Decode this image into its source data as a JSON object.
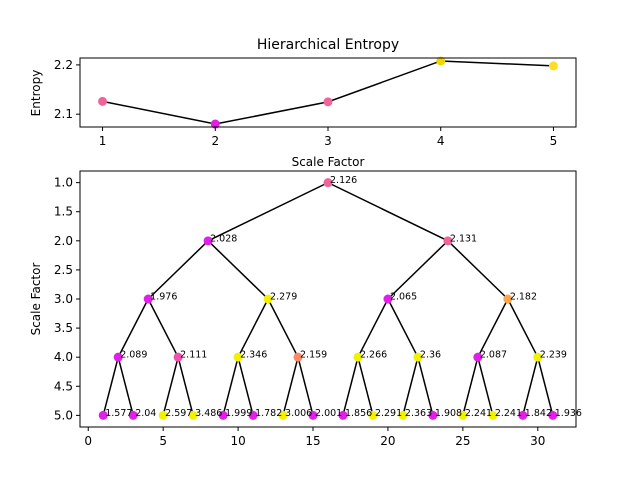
{
  "chart_data": [
    {
      "type": "line",
      "title": "Hierarchical Entropy",
      "xlabel": "Scale Factor",
      "ylabel": "Entropy",
      "x": [
        1,
        2,
        3,
        4,
        5
      ],
      "y": [
        2.126,
        2.08,
        2.125,
        2.208,
        2.198
      ],
      "point_colors": [
        "#f0649a",
        "#e020e8",
        "#f0649a",
        "#f2d400",
        "#ffdd22"
      ],
      "xlim": [
        0.8,
        5.2
      ],
      "ylim": [
        2.074,
        2.214
      ],
      "xticks": [
        1,
        2,
        3,
        4,
        5
      ],
      "yticks": [
        2.1,
        2.2
      ],
      "grid": false
    },
    {
      "type": "scatter",
      "subtype": "binary-tree",
      "xlabel": "",
      "ylabel": "Scale Factor",
      "xlim": [
        -0.55,
        32.55
      ],
      "ylim": [
        5.2,
        0.8
      ],
      "y_inverted": true,
      "xticks": [
        0,
        5,
        10,
        15,
        20,
        25,
        30
      ],
      "yticks": [
        1.0,
        1.5,
        2.0,
        2.5,
        3.0,
        3.5,
        4.0,
        4.5,
        5.0
      ],
      "grid": false,
      "nodes": [
        {
          "x": 16,
          "y": 1,
          "label": "2.126",
          "color": "#f0649a"
        },
        {
          "x": 8,
          "y": 2,
          "label": "2.028",
          "color": "#e020e8"
        },
        {
          "x": 24,
          "y": 2,
          "label": "2.131",
          "color": "#f0649a"
        },
        {
          "x": 4,
          "y": 3,
          "label": "1.976",
          "color": "#e020e8"
        },
        {
          "x": 12,
          "y": 3,
          "label": "2.279",
          "color": "#f2f200"
        },
        {
          "x": 20,
          "y": 3,
          "label": "2.065",
          "color": "#e020e8"
        },
        {
          "x": 28,
          "y": 3,
          "label": "2.182",
          "color": "#ffa64d"
        },
        {
          "x": 2,
          "y": 4,
          "label": "2.089",
          "color": "#e020e8"
        },
        {
          "x": 6,
          "y": 4,
          "label": "2.111",
          "color": "#f050b0"
        },
        {
          "x": 10,
          "y": 4,
          "label": "2.346",
          "color": "#f2f200"
        },
        {
          "x": 14,
          "y": 4,
          "label": "2.159",
          "color": "#ff8866"
        },
        {
          "x": 18,
          "y": 4,
          "label": "2.266",
          "color": "#f2f200"
        },
        {
          "x": 22,
          "y": 4,
          "label": "2.36",
          "color": "#f2f200"
        },
        {
          "x": 26,
          "y": 4,
          "label": "2.087",
          "color": "#e020e8"
        },
        {
          "x": 30,
          "y": 4,
          "label": "2.239",
          "color": "#f2f200"
        },
        {
          "x": 1,
          "y": 5,
          "label": "1.577",
          "color": "#e020e8"
        },
        {
          "x": 3,
          "y": 5,
          "label": "2.04",
          "color": "#e020e8"
        },
        {
          "x": 5,
          "y": 5,
          "label": "2.597",
          "color": "#f2f200"
        },
        {
          "x": 7,
          "y": 5,
          "label": "3.486",
          "color": "#f2f200"
        },
        {
          "x": 9,
          "y": 5,
          "label": "1.999",
          "color": "#e020e8"
        },
        {
          "x": 11,
          "y": 5,
          "label": "1.782",
          "color": "#e020e8"
        },
        {
          "x": 13,
          "y": 5,
          "label": "3.006",
          "color": "#f2f200"
        },
        {
          "x": 15,
          "y": 5,
          "label": "2.001",
          "color": "#e020e8"
        },
        {
          "x": 17,
          "y": 5,
          "label": "1.856",
          "color": "#e020e8"
        },
        {
          "x": 19,
          "y": 5,
          "label": "2.291",
          "color": "#f2f200"
        },
        {
          "x": 21,
          "y": 5,
          "label": "2.363",
          "color": "#f2f200"
        },
        {
          "x": 23,
          "y": 5,
          "label": "1.908",
          "color": "#e020e8"
        },
        {
          "x": 25,
          "y": 5,
          "label": "2.241",
          "color": "#f2f200"
        },
        {
          "x": 27,
          "y": 5,
          "label": "2.241",
          "color": "#f2f200"
        },
        {
          "x": 29,
          "y": 5,
          "label": "1.842",
          "color": "#e020e8"
        },
        {
          "x": 31,
          "y": 5,
          "label": "1.936",
          "color": "#e020e8"
        }
      ],
      "edges": [
        [
          0,
          1
        ],
        [
          0,
          2
        ],
        [
          1,
          3
        ],
        [
          1,
          4
        ],
        [
          2,
          5
        ],
        [
          2,
          6
        ],
        [
          3,
          7
        ],
        [
          3,
          8
        ],
        [
          4,
          9
        ],
        [
          4,
          10
        ],
        [
          5,
          11
        ],
        [
          5,
          12
        ],
        [
          6,
          13
        ],
        [
          6,
          14
        ],
        [
          7,
          15
        ],
        [
          7,
          16
        ],
        [
          8,
          17
        ],
        [
          8,
          18
        ],
        [
          9,
          19
        ],
        [
          9,
          20
        ],
        [
          10,
          21
        ],
        [
          10,
          22
        ],
        [
          11,
          23
        ],
        [
          11,
          24
        ],
        [
          12,
          25
        ],
        [
          12,
          26
        ],
        [
          13,
          27
        ],
        [
          13,
          28
        ],
        [
          14,
          29
        ],
        [
          14,
          30
        ]
      ]
    }
  ]
}
